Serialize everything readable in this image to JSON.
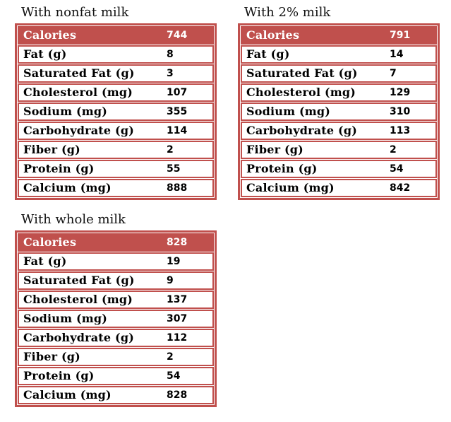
{
  "colors": {
    "accent_red": "#c0504d",
    "header_text": "#ffffff",
    "body_text": "#000000",
    "background": "#ffffff"
  },
  "chart_data": {
    "type": "table",
    "layout": "three tables: top-left, top-right, bottom-left; header row red with white text; each row outlined in red",
    "row_headers": [
      "Calories",
      "Fat (g)",
      "Saturated Fat (g)",
      "Cholesterol (mg)",
      "Sodium (mg)",
      "Carbohydrate (g)",
      "Fiber (g)",
      "Protein (g)",
      "Calcium (mg)"
    ],
    "tables": [
      {
        "title": "With nonfat milk",
        "values": [
          744,
          8,
          3,
          107,
          355,
          114,
          2,
          55,
          888
        ]
      },
      {
        "title": "With 2% milk",
        "values": [
          791,
          14,
          7,
          129,
          310,
          113,
          2,
          54,
          842
        ]
      },
      {
        "title": "With whole milk",
        "values": [
          828,
          19,
          9,
          137,
          307,
          112,
          2,
          54,
          828
        ]
      }
    ]
  }
}
